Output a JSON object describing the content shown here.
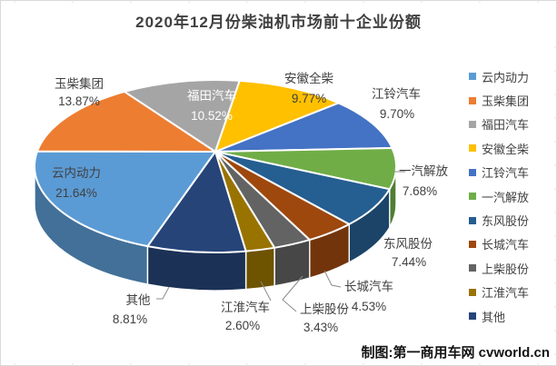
{
  "chart_data": {
    "type": "pie",
    "effect_3d": true,
    "title": "2020年12月份柴油机市场前十企业份额",
    "unit": "percent-share",
    "rotation_deg": 202,
    "legend_position": "right",
    "labels_show": "name+percent",
    "series": [
      {
        "name": "云内动力",
        "value": 21.64,
        "label": "21.64%",
        "color": "#5B9BD5"
      },
      {
        "name": "玉柴集团",
        "value": 13.87,
        "label": "13.87%",
        "color": "#ED7D31"
      },
      {
        "name": "福田汽车",
        "value": 10.52,
        "label": "10.52%",
        "color": "#A5A5A5"
      },
      {
        "name": "安徽全柴",
        "value": 9.77,
        "label": "9.77%",
        "color": "#FFC000"
      },
      {
        "name": "江铃汽车",
        "value": 9.7,
        "label": "9.70%",
        "color": "#4472C4"
      },
      {
        "name": "一汽解放",
        "value": 7.68,
        "label": "7.68%",
        "color": "#70AD47"
      },
      {
        "name": "东风股份",
        "value": 7.44,
        "label": "7.44%",
        "color": "#255E91"
      },
      {
        "name": "长城汽车",
        "value": 4.53,
        "label": "4.53%",
        "color": "#9E480E"
      },
      {
        "name": "上柴股份",
        "value": 3.43,
        "label": "3.43%",
        "color": "#636363"
      },
      {
        "name": "江淮汽车",
        "value": 2.6,
        "label": "2.60%",
        "color": "#997300"
      },
      {
        "name": "其他",
        "value": 8.81,
        "label": "8.81%",
        "color": "#264478"
      }
    ]
  },
  "footer": {
    "credit": "制图:第一商用车网 cvworld.cn"
  }
}
